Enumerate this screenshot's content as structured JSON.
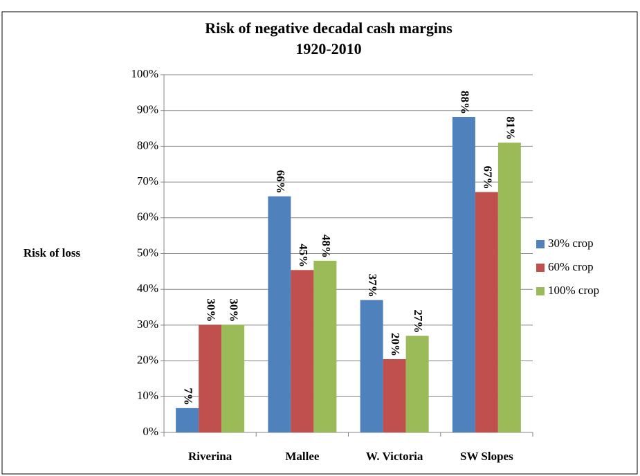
{
  "chart_data": {
    "type": "bar",
    "title": "Risk of negative decadal cash margins",
    "subtitle": "1920-2010",
    "y_label": "Risk of loss",
    "categories": [
      "Riverina",
      "Mallee",
      "W. Victoria",
      "SW Slopes"
    ],
    "series": [
      {
        "name": "30% crop",
        "color": "#4f81bd",
        "values": [
          6.8,
          66,
          37,
          88.2
        ],
        "value_labels": [
          "7%",
          "66%",
          "37%",
          "88%"
        ]
      },
      {
        "name": "60% crop",
        "color": "#c0504d",
        "values": [
          30.1,
          45.4,
          20.5,
          67.2
        ],
        "value_labels": [
          "30%",
          "45%",
          "20%",
          "67%"
        ]
      },
      {
        "name": "100% crop",
        "color": "#9bbb59",
        "values": [
          30.1,
          48,
          27,
          81
        ],
        "value_labels": [
          "30%",
          "48%",
          "27%",
          "81%"
        ]
      }
    ],
    "ylim": [
      0,
      100
    ],
    "yticks": [
      {
        "value": 0,
        "label": "0%"
      },
      {
        "value": 10,
        "label": "10%"
      },
      {
        "value": 20,
        "label": "20%"
      },
      {
        "value": 30,
        "label": "30%"
      },
      {
        "value": 40,
        "label": "40%"
      },
      {
        "value": 50,
        "label": "50%"
      },
      {
        "value": 60,
        "label": "60%"
      },
      {
        "value": 70,
        "label": "70%"
      },
      {
        "value": 80,
        "label": "80%"
      },
      {
        "value": 90,
        "label": "90%"
      },
      {
        "value": 100,
        "label": "100%"
      }
    ],
    "grid": true,
    "legend": "right"
  }
}
